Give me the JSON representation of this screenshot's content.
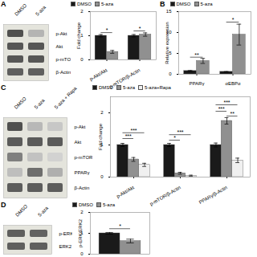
{
  "chart_data": [
    {
      "type": "heatmap",
      "title": "A",
      "x": [
        "DMSO",
        "5-aza"
      ],
      "y": [
        "p-Akt",
        "Akt",
        "p-mTOR",
        "β-Actin"
      ],
      "values": [
        [
          0.92,
          0.25
        ],
        [
          0.88,
          0.88
        ],
        [
          0.88,
          0.88
        ],
        [
          0.82,
          0.82
        ]
      ]
    },
    {
      "type": "bar",
      "categories": [
        "p-Akt/Akt",
        "p-mTOR/β-Actin"
      ],
      "series": [
        {
          "name": "DMSO",
          "color": "#1a1a1a",
          "values": [
            1.0,
            1.0
          ],
          "errors": [
            0.05,
            0.05
          ]
        },
        {
          "name": "5-aza",
          "color": "#909090",
          "values": [
            0.33,
            1.05
          ],
          "errors": [
            0.06,
            0.07
          ]
        }
      ],
      "ylim": [
        0,
        2
      ],
      "yticks": [
        0,
        1,
        2
      ],
      "ylabel": "Fold change",
      "legend": "upper left",
      "annotations": [
        {
          "text": "*",
          "category": "p-Akt/Akt",
          "from": "DMSO",
          "to": "5-aza",
          "y": 1.13
        },
        {
          "text": "*",
          "category": "p-mTOR/β-Actin",
          "from": "DMSO",
          "to": "5-aza",
          "y": 1.2
        }
      ]
    },
    {
      "type": "bar",
      "title": "B",
      "categories": [
        "PPARγ",
        "αEBPα"
      ],
      "series": [
        {
          "name": "DMSO",
          "color": "#1a1a1a",
          "values": [
            0.8,
            0.6
          ],
          "errors": [
            0.1,
            0.05
          ]
        },
        {
          "name": "5-aza",
          "color": "#909090",
          "values": [
            3.2,
            9.5
          ],
          "errors": [
            0.6,
            2.5
          ]
        }
      ],
      "ylim": [
        0,
        15
      ],
      "yticks": [
        0,
        5,
        10,
        15
      ],
      "ylabel": "Relative expression",
      "legend": "upper left",
      "annotations": [
        {
          "text": "**",
          "category": "PPARγ",
          "from": "DMSO",
          "to": "5-aza",
          "y": 4.1
        },
        {
          "text": "*",
          "category": "αEBPα",
          "from": "DMSO",
          "to": "5-aza",
          "y": 12.5
        }
      ]
    },
    {
      "type": "heatmap",
      "title": "C",
      "x": [
        "DMSO",
        "5-aza",
        "5-aza + Rapa"
      ],
      "y": [
        "p-Akt",
        "Akt",
        "p-mTOR",
        "PPARγ",
        "β-Actin"
      ],
      "values": [
        [
          0.92,
          0.22,
          0.12
        ],
        [
          0.85,
          0.85,
          0.85
        ],
        [
          0.6,
          0.15,
          0.05
        ],
        [
          0.18,
          0.72,
          0.28
        ],
        [
          0.83,
          0.83,
          0.83
        ]
      ]
    },
    {
      "type": "bar",
      "categories": [
        "p-Akt/Akt",
        "p-mTOR/β-Actin",
        "PPARγ/β-Actin"
      ],
      "series": [
        {
          "name": "DMSO",
          "color": "#1a1a1a",
          "values": [
            1.0,
            1.0,
            1.0
          ],
          "errors": [
            0.05,
            0.05,
            0.06
          ]
        },
        {
          "name": "5-aza",
          "color": "#909090",
          "values": [
            0.55,
            0.12,
            1.75
          ],
          "errors": [
            0.06,
            0.03,
            0.1
          ]
        },
        {
          "name": "5-aza+Rapa",
          "color": "#f0f0f0",
          "values": [
            0.38,
            0.04,
            0.52
          ],
          "errors": [
            0.05,
            0.02,
            0.07
          ]
        }
      ],
      "ylim": [
        0,
        2.5
      ],
      "yticks": [
        0,
        1,
        2
      ],
      "ylabel": "Fold change",
      "legend": "upper left",
      "annotations": [
        {
          "text": "***",
          "category": "p-Akt/Akt",
          "from": "DMSO",
          "to": "5-aza",
          "y": 1.2
        },
        {
          "text": "***",
          "category": "p-Akt/Akt",
          "from": "DMSO",
          "to": "5-aza+Rapa",
          "y": 1.38
        },
        {
          "text": "*",
          "category": "p-mTOR/β-Actin",
          "from": "DMSO",
          "to": "5-aza",
          "y": 1.15
        },
        {
          "text": "***",
          "category": "p-mTOR/β-Actin",
          "from": "DMSO",
          "to": "5-aza+Rapa",
          "y": 1.32
        },
        {
          "text": "**",
          "category": "PPARγ/β-Actin",
          "from": "5-aza",
          "to": "5-aza+Rapa",
          "y": 1.9
        },
        {
          "text": "***",
          "category": "PPARγ/β-Actin",
          "from": "DMSO",
          "to": "5-aza",
          "y": 2.05
        },
        {
          "text": "***",
          "category": "PPARγ/β-Actin",
          "from": "DMSO",
          "to": "5-aza+Rapa",
          "y": 2.25
        }
      ]
    },
    {
      "type": "heatmap",
      "title": "D",
      "x": [
        "DMSO",
        "5-aza"
      ],
      "y": [
        "p-ERK",
        "ERK2"
      ],
      "values": [
        [
          0.82,
          0.8
        ],
        [
          0.82,
          0.82
        ]
      ]
    },
    {
      "type": "bar",
      "categories": [
        null
      ],
      "series": [
        {
          "name": "DMSO",
          "color": "#1a1a1a",
          "values": [
            1.0
          ],
          "errors": [
            0.04
          ]
        },
        {
          "name": "5-aza",
          "color": "#909090",
          "values": [
            0.63
          ],
          "errors": [
            0.09
          ]
        }
      ],
      "ylim": [
        0,
        2
      ],
      "yticks": [
        0,
        1,
        2
      ],
      "ylabel": "p-ERK/ERK2",
      "legend": "upper left",
      "tick_labels": "y",
      "annotations": [
        {
          "text": "*",
          "category": null,
          "from": "DMSO",
          "to": "5-aza",
          "y": 1.22
        }
      ]
    }
  ]
}
